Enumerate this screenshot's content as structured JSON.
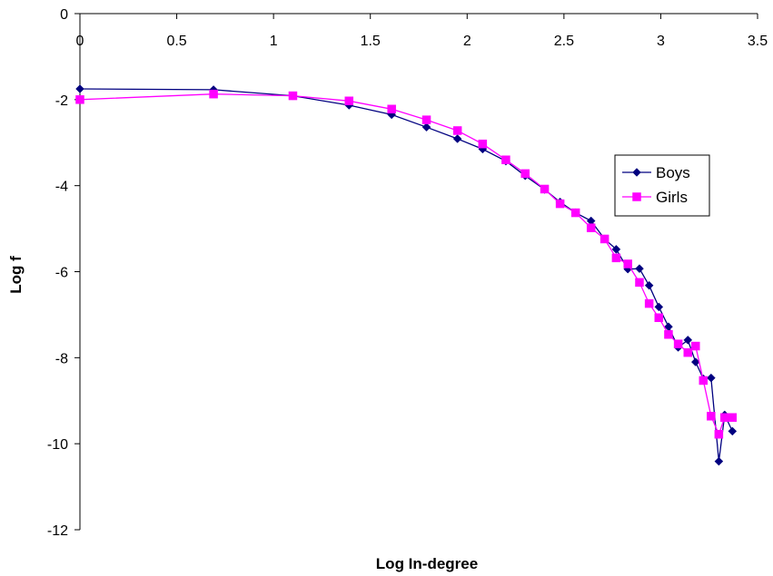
{
  "chart_data": {
    "type": "line",
    "xlabel": "Log In-degree",
    "ylabel": "Log f",
    "xlim": [
      0,
      3.5
    ],
    "ylim": [
      -12,
      0
    ],
    "x_ticks": [
      0,
      0.5,
      1,
      1.5,
      2,
      2.5,
      3,
      3.5
    ],
    "y_ticks": [
      0,
      -2,
      -4,
      -6,
      -8,
      -10,
      -12
    ],
    "x_tick_labels": [
      "0",
      "0.5",
      "1",
      "1.5",
      "2",
      "2.5",
      "3",
      "3.5"
    ],
    "y_tick_labels": [
      "0",
      "-2",
      "-4",
      "-6",
      "-8",
      "-10",
      "-12"
    ],
    "grid": false,
    "legend_position": "right",
    "series": [
      {
        "name": "Boys",
        "color": "#000080",
        "marker": "diamond",
        "points": [
          [
            0,
            -1.75
          ],
          [
            0.69,
            -1.77
          ],
          [
            1.1,
            -1.91
          ],
          [
            1.39,
            -2.13
          ],
          [
            1.61,
            -2.35
          ],
          [
            1.79,
            -2.64
          ],
          [
            1.95,
            -2.91
          ],
          [
            2.08,
            -3.15
          ],
          [
            2.2,
            -3.43
          ],
          [
            2.3,
            -3.77
          ],
          [
            2.4,
            -4.09
          ],
          [
            2.48,
            -4.38
          ],
          [
            2.56,
            -4.63
          ],
          [
            2.64,
            -4.82
          ],
          [
            2.71,
            -5.24
          ],
          [
            2.77,
            -5.48
          ],
          [
            2.83,
            -5.94
          ],
          [
            2.89,
            -5.93
          ],
          [
            2.94,
            -6.32
          ],
          [
            2.99,
            -6.82
          ],
          [
            3.04,
            -7.28
          ],
          [
            3.09,
            -7.76
          ],
          [
            3.14,
            -7.59
          ],
          [
            3.18,
            -8.1
          ],
          [
            3.22,
            -8.49
          ],
          [
            3.26,
            -8.47
          ],
          [
            3.3,
            -10.41
          ],
          [
            3.33,
            -9.33
          ],
          [
            3.37,
            -9.71
          ]
        ]
      },
      {
        "name": "Girls",
        "color": "#ff00ff",
        "marker": "square",
        "points": [
          [
            0,
            -2.0
          ],
          [
            0.69,
            -1.87
          ],
          [
            1.1,
            -1.91
          ],
          [
            1.39,
            -2.03
          ],
          [
            1.61,
            -2.22
          ],
          [
            1.79,
            -2.47
          ],
          [
            1.95,
            -2.72
          ],
          [
            2.08,
            -3.03
          ],
          [
            2.2,
            -3.4
          ],
          [
            2.3,
            -3.72
          ],
          [
            2.4,
            -4.08
          ],
          [
            2.48,
            -4.42
          ],
          [
            2.56,
            -4.63
          ],
          [
            2.64,
            -4.98
          ],
          [
            2.71,
            -5.24
          ],
          [
            2.77,
            -5.68
          ],
          [
            2.83,
            -5.82
          ],
          [
            2.89,
            -6.25
          ],
          [
            2.94,
            -6.74
          ],
          [
            2.99,
            -7.07
          ],
          [
            3.04,
            -7.46
          ],
          [
            3.09,
            -7.68
          ],
          [
            3.14,
            -7.88
          ],
          [
            3.18,
            -7.73
          ],
          [
            3.22,
            -8.53
          ],
          [
            3.26,
            -9.36
          ],
          [
            3.3,
            -9.78
          ],
          [
            3.33,
            -9.39
          ],
          [
            3.37,
            -9.39
          ]
        ]
      }
    ]
  }
}
